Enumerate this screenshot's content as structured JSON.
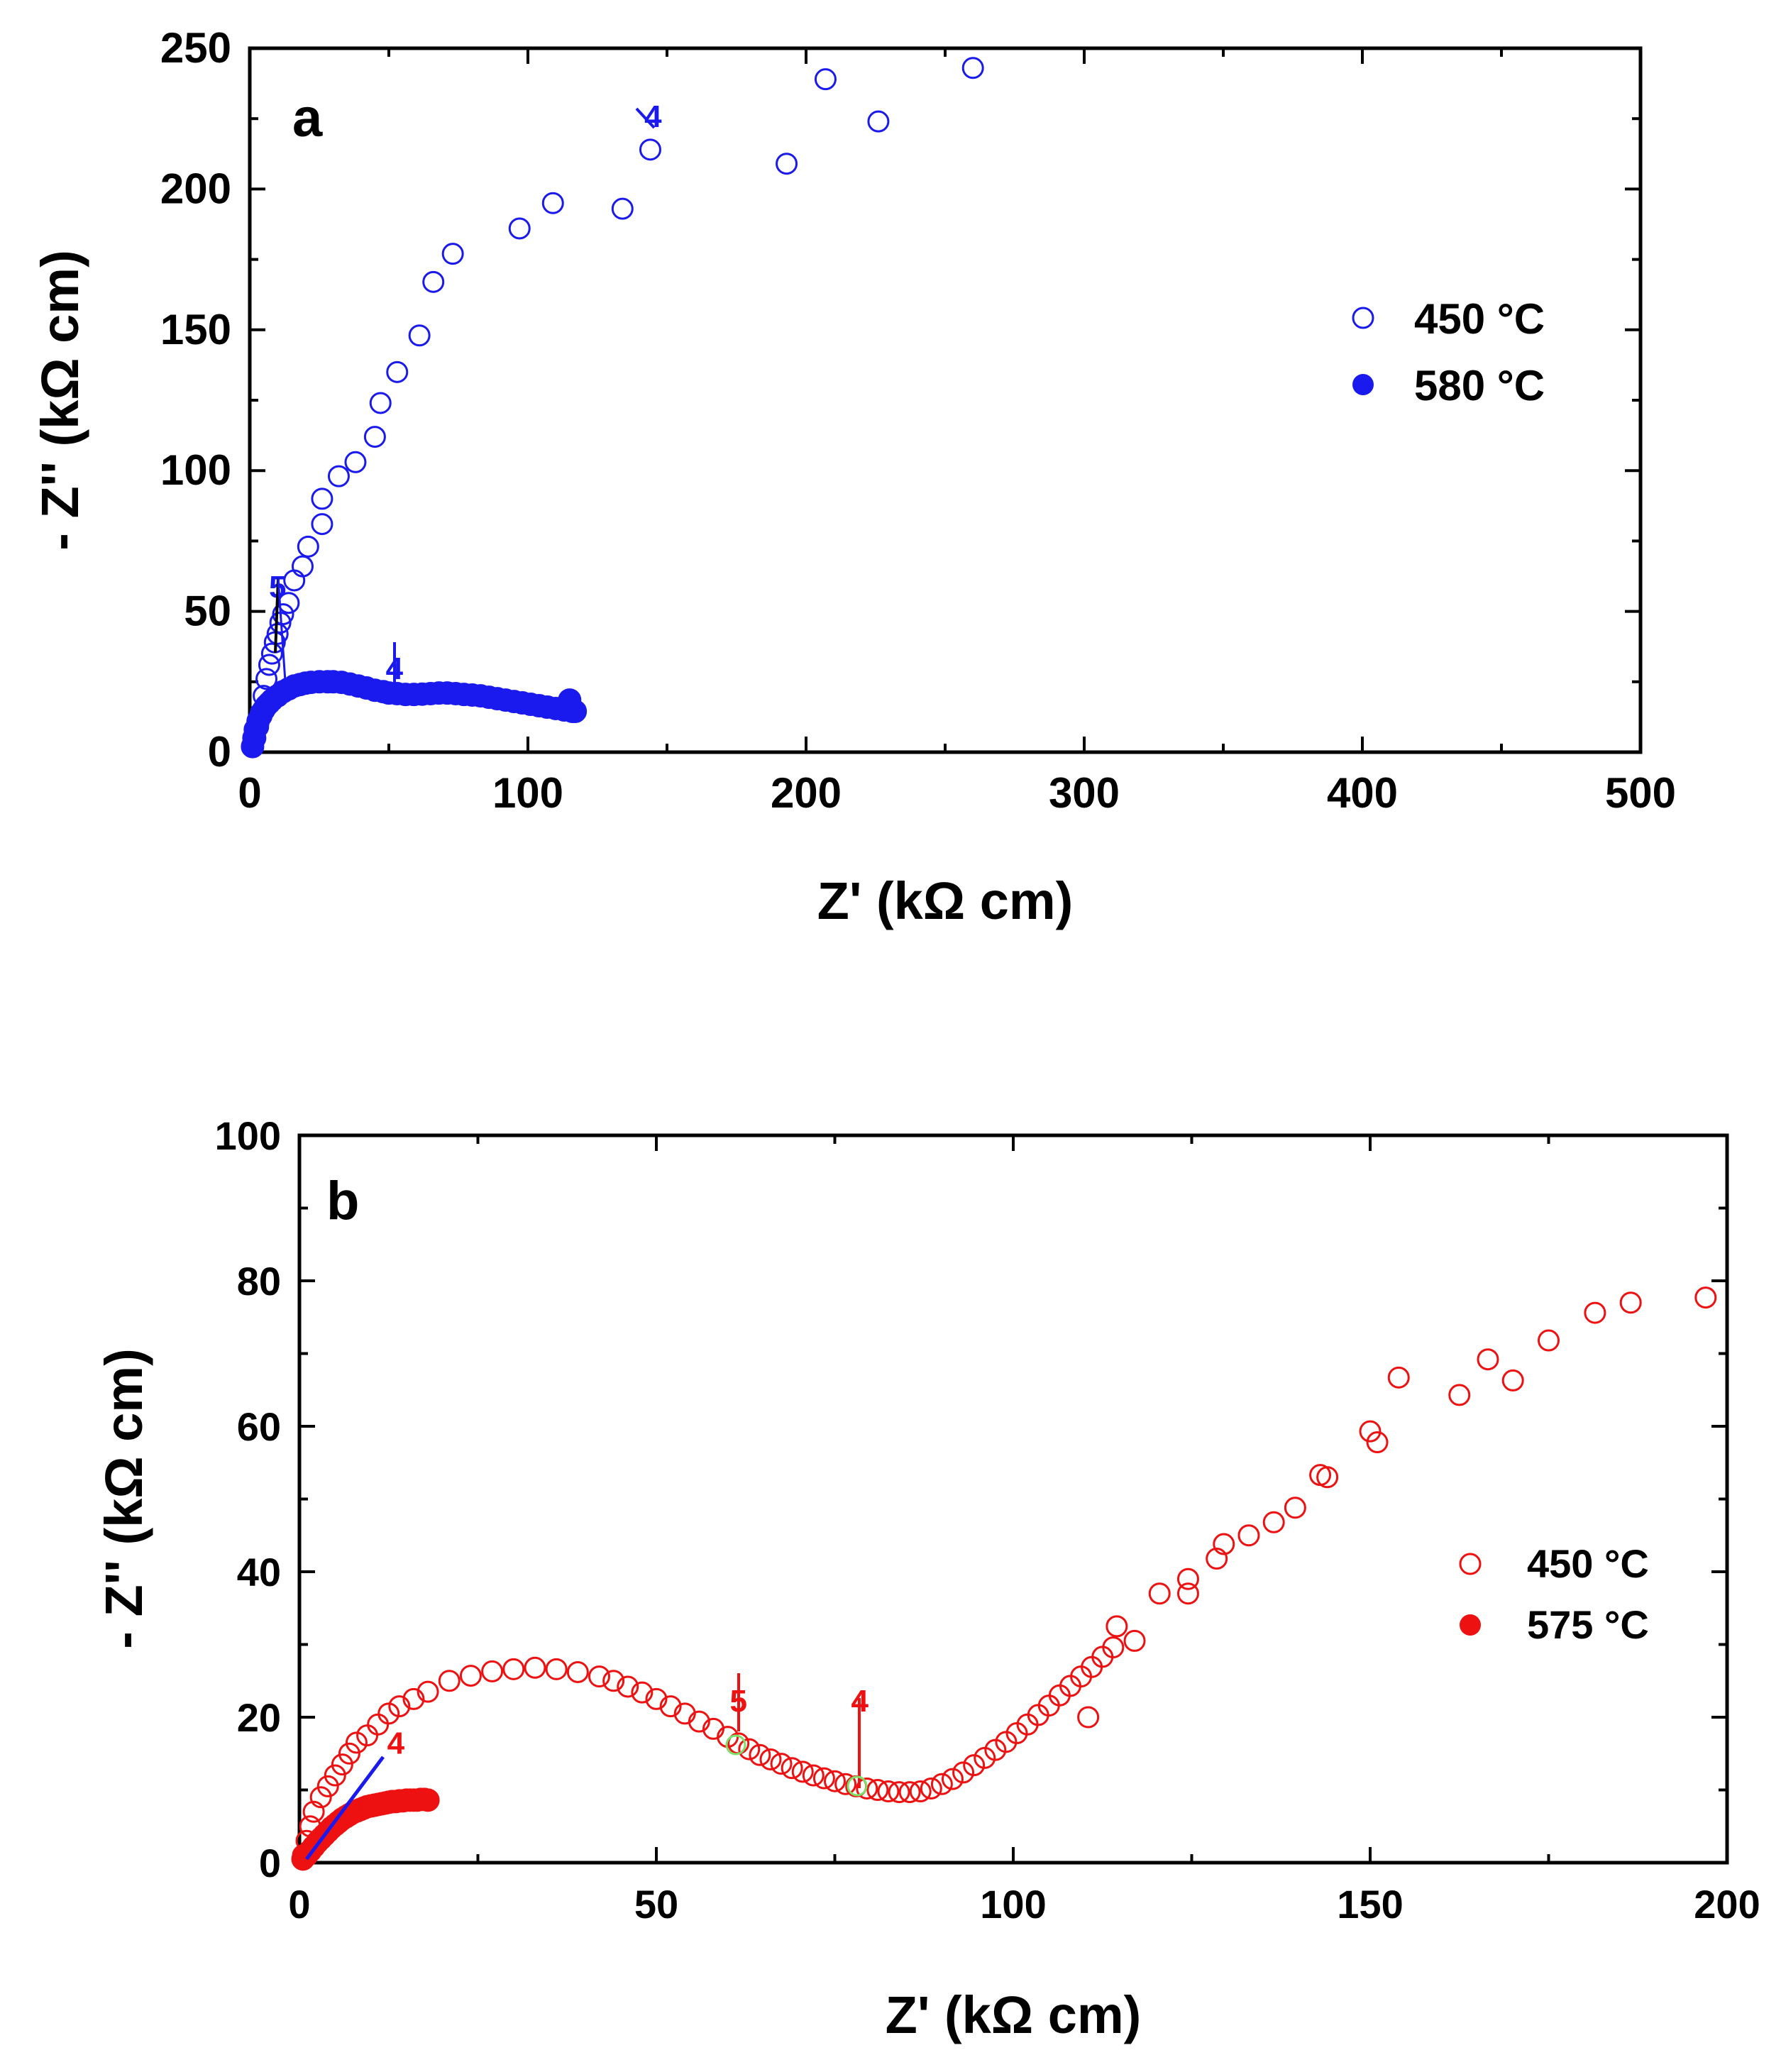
{
  "chart_data": [
    {
      "panel": "a",
      "type": "scatter",
      "xlabel": "Z' (kΩ cm)",
      "ylabel": "- Z'' (kΩ cm)",
      "xlim": [
        0,
        500
      ],
      "ylim": [
        0,
        250
      ],
      "xticks": [
        0,
        100,
        200,
        300,
        400,
        500
      ],
      "yticks": [
        0,
        50,
        100,
        150,
        200,
        250
      ],
      "legend_position": "right-middle",
      "color": "#1a1aee",
      "series": [
        {
          "name": "450 °C",
          "marker": "open-circle",
          "x": [
            1,
            2,
            3,
            4,
            5,
            6,
            7,
            8,
            9,
            10,
            11,
            12,
            14,
            16,
            19,
            21,
            26,
            26,
            32,
            38,
            45,
            47,
            53,
            61,
            66,
            73,
            97,
            109,
            134,
            144,
            193,
            207,
            226,
            260
          ],
          "y": [
            2,
            5,
            9,
            14,
            20,
            26,
            31,
            35,
            39,
            42,
            46,
            49,
            53,
            61,
            66,
            73,
            81,
            90,
            98,
            103,
            112,
            124,
            135,
            148,
            167,
            177,
            186,
            195,
            193,
            214,
            209,
            239,
            224,
            243
          ]
        },
        {
          "name": "580 °C",
          "marker": "filled-circle",
          "x": [
            1,
            1.5,
            2,
            3,
            4,
            5,
            6,
            7,
            8,
            10,
            12,
            14,
            16,
            18,
            20,
            22,
            25,
            28,
            30,
            33,
            36,
            39,
            42,
            45,
            48,
            50,
            53,
            56,
            59,
            62,
            65,
            68,
            71,
            74,
            77,
            80,
            83,
            86,
            89,
            92,
            95,
            98,
            101,
            104,
            107,
            110,
            113,
            115,
            116,
            117
          ],
          "y": [
            2,
            5,
            8,
            11,
            13,
            15,
            16.5,
            17.5,
            18.5,
            20,
            21.5,
            22.5,
            23.5,
            24,
            24.5,
            24.8,
            25,
            25,
            25,
            24.8,
            24.2,
            23.5,
            22.8,
            22,
            21.5,
            21,
            20.8,
            20.5,
            20.5,
            20.6,
            20.8,
            21,
            21,
            20.8,
            20.5,
            20.3,
            20,
            19.5,
            19,
            18.5,
            18,
            17.5,
            17,
            16.5,
            16,
            15.5,
            15,
            18.5,
            14.5,
            14.5
          ]
        }
      ],
      "annotations": [
        {
          "text": "4",
          "x": 145,
          "y": 222
        },
        {
          "text": "5",
          "x": 10,
          "y": 55
        },
        {
          "text": "4",
          "x": 52,
          "y": 26
        }
      ]
    },
    {
      "panel": "b",
      "type": "scatter",
      "xlabel": "Z' (kΩ cm)",
      "ylabel": "- Z'' (kΩ cm)",
      "xlim": [
        0,
        200
      ],
      "ylim": [
        0,
        100
      ],
      "xticks": [
        0,
        50,
        100,
        150,
        200
      ],
      "yticks": [
        0,
        20,
        40,
        60,
        80,
        100
      ],
      "legend_position": "right-lower",
      "color": "#ee1111",
      "series": [
        {
          "name": "450 °C",
          "marker": "open-circle",
          "x": [
            0.5,
            1,
            1.5,
            2,
            3,
            4,
            5,
            6,
            7,
            8,
            9.5,
            11,
            12.5,
            14,
            16,
            18,
            21,
            24,
            27,
            30,
            33,
            36,
            39,
            42,
            44,
            46,
            48,
            50,
            52,
            54,
            56,
            58,
            60,
            61.5,
            63,
            64.5,
            66,
            67.5,
            69,
            70.5,
            72,
            73.5,
            75,
            76.5,
            78,
            79.5,
            81,
            82.5,
            84,
            85.5,
            87,
            88.5,
            90,
            91.5,
            93,
            94.5,
            96,
            97.5,
            99,
            100.5,
            102,
            103.5,
            105,
            106.5,
            108,
            109.5,
            111,
            112.5,
            114,
            110.5,
            114.5,
            117,
            120.5,
            124.5,
            124.5,
            128.5,
            129.5,
            133,
            136.5,
            139.5,
            143,
            144,
            150,
            151,
            154,
            162.5,
            166.5,
            170,
            175,
            181.5,
            186.5,
            197
          ],
          "y": [
            1,
            3,
            5,
            7,
            9,
            10.5,
            12,
            13.5,
            15,
            16.5,
            17.5,
            19,
            20.5,
            21.5,
            22.5,
            23.5,
            25,
            25.7,
            26.3,
            26.6,
            26.8,
            26.6,
            26.2,
            25.6,
            25,
            24.2,
            23.4,
            22.5,
            21.5,
            20.5,
            19.4,
            18.4,
            17.3,
            16.4,
            15.6,
            14.8,
            14.2,
            13.6,
            13,
            12.5,
            12,
            11.6,
            11.2,
            10.8,
            10.5,
            10.2,
            10,
            9.8,
            9.7,
            9.7,
            9.8,
            10.2,
            10.8,
            11.5,
            12.4,
            13.4,
            14.4,
            15.5,
            16.6,
            17.8,
            19,
            20.3,
            21.6,
            23,
            24.3,
            25.6,
            26.9,
            28.3,
            29.6,
            20,
            32.5,
            30.5,
            37,
            37,
            39,
            41.8,
            43.8,
            45,
            46.8,
            48.8,
            53.3,
            53,
            59.3,
            57.8,
            66.7,
            64.3,
            69.2,
            66.3,
            71.8,
            75.6,
            77,
            77.7
          ]
        },
        {
          "name": "575 °C",
          "marker": "filled-circle",
          "x": [
            0.5,
            1,
            1.5,
            2,
            2.5,
            3,
            3.5,
            4,
            4.5,
            5,
            5.5,
            6,
            6.5,
            7,
            7.5,
            8,
            8.5,
            9,
            9.5,
            10,
            10.5,
            11,
            11.5,
            12,
            12.5,
            13,
            13.5,
            14,
            14.5,
            15,
            15.5,
            16,
            16.5,
            17,
            17.5,
            18
          ],
          "y": [
            0.5,
            1,
            1.6,
            2.2,
            2.8,
            3.3,
            3.8,
            4.3,
            4.8,
            5.2,
            5.6,
            6,
            6.3,
            6.6,
            6.9,
            7.1,
            7.3,
            7.5,
            7.7,
            7.8,
            7.9,
            8,
            8.1,
            8.2,
            8.3,
            8.4,
            8.4,
            8.5,
            8.5,
            8.6,
            8.6,
            8.6,
            8.6,
            8.7,
            8.7,
            8.6
          ]
        }
      ],
      "annotations": [
        {
          "text": "5",
          "x": 61.5,
          "y": 20.8
        },
        {
          "text": "4",
          "x": 78.5,
          "y": 20.8
        },
        {
          "text": "4",
          "x": 13.5,
          "y": 15
        }
      ]
    }
  ]
}
